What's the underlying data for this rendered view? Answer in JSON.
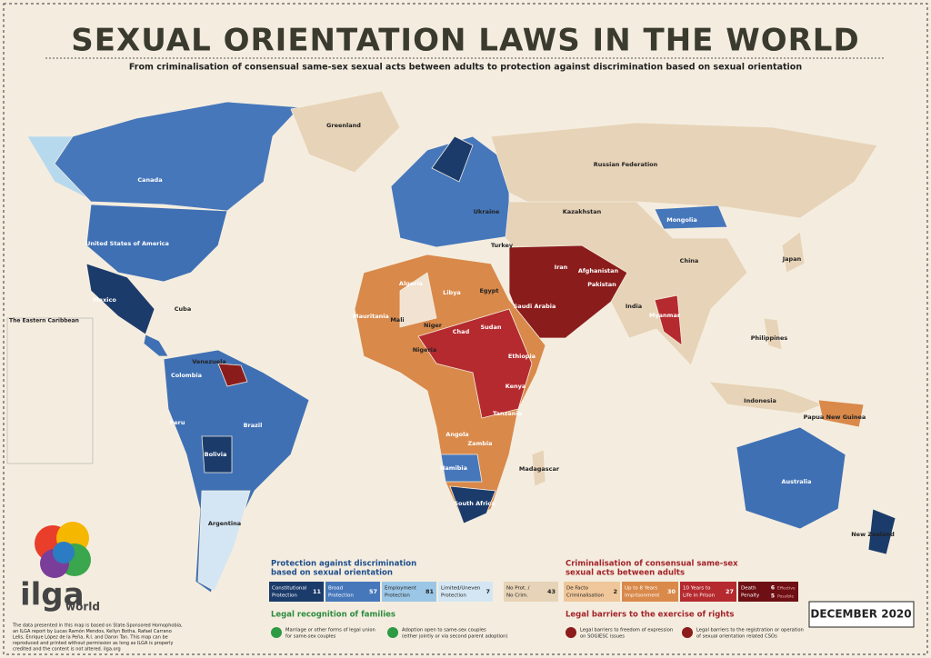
{
  "header": {
    "title": "SEXUAL ORIENTATION LAWS IN THE WORLD",
    "subtitle": "From criminalisation of consensual same-sex sexual acts between adults to protection against discrimination based on sexual orientation"
  },
  "map": {
    "caribbean_title": "The Eastern Caribbean",
    "labels": [
      "Canada",
      "United States of America",
      "Mexico",
      "Greenland",
      "Russian Federation",
      "Kazakhstan",
      "Mongolia",
      "China",
      "India",
      "Australia",
      "Brazil",
      "Argentina",
      "Bolivia",
      "Peru",
      "Colombia",
      "Venezuela",
      "Iran",
      "Saudi Arabia",
      "Egypt",
      "Libya",
      "Algeria",
      "Niger",
      "Nigeria",
      "Chad",
      "Sudan",
      "Ethiopia",
      "Angola",
      "Namibia",
      "South Africa",
      "Madagascar",
      "Indonesia",
      "Philippines",
      "Japan",
      "Ukraine",
      "Afghanistan",
      "Pakistan",
      "Turkey",
      "Mali",
      "Mauritania",
      "Kenya",
      "Tanzania",
      "Zambia",
      "Myanmar",
      "Papua New Guinea",
      "New Zealand",
      "Cuba"
    ]
  },
  "legend": {
    "protection": {
      "title": [
        "Protection against discrimination",
        "based on sexual orientation"
      ],
      "items": [
        {
          "label": [
            "Constitutional",
            "Protection"
          ],
          "count": 11
        },
        {
          "label": [
            "Broad",
            "Protection"
          ],
          "count": 57
        },
        {
          "label": [
            "Employment",
            "Protection"
          ],
          "count": 81
        },
        {
          "label": [
            "Limited/Uneven",
            "Protection"
          ],
          "count": 7
        }
      ]
    },
    "no_prot": {
      "label": [
        "No Prot. /",
        "No Crim."
      ],
      "count": 43
    },
    "criminalisation": {
      "title": [
        "Criminalisation of consensual same-sex",
        "sexual acts between adults"
      ],
      "items": [
        {
          "label": [
            "De Facto",
            "Criminalisation"
          ],
          "count": 2
        },
        {
          "label": [
            "Up to 8 Years",
            "Imprisonment"
          ],
          "count": 30
        },
        {
          "label": [
            "10 Years to",
            "Life in Prison"
          ],
          "count": 27
        }
      ]
    },
    "death": {
      "label": [
        "Death",
        "Penalty"
      ],
      "effective": 6,
      "effective_label": "Effective",
      "possible": 5,
      "possible_label": "Possible"
    }
  },
  "families": {
    "title": "Legal recognition of families",
    "items": [
      [
        "Marriage or other forms of legal union",
        "for same-sex couples"
      ],
      [
        "Adoption open to same-sex couples",
        "(either jointly or via second parent adoption)"
      ]
    ]
  },
  "barriers": {
    "title": "Legal barriers to the exercise of rights",
    "items": [
      [
        "Legal barriers to freedom of expression",
        "on SOGIESC issues"
      ],
      [
        "Legal barriers to the registration or operation",
        "of sexual orientation related CSOs"
      ]
    ]
  },
  "date": "DECEMBER 2020",
  "logo": {
    "name": "ilga",
    "sub": "world"
  },
  "note": [
    "The data presented in this map is based on State-Sponsored Homophobia,",
    "an ILGA report by Lucas Ramón Mendos, Kellyn Botha, Rafael Carrano",
    "Lelis, Enrique López de la Peña, R.I. and Daron Tan. This map can be",
    "reproduced and printed without permission as long as ILGA is properly",
    "credited and the content is not altered. ilga.org"
  ]
}
